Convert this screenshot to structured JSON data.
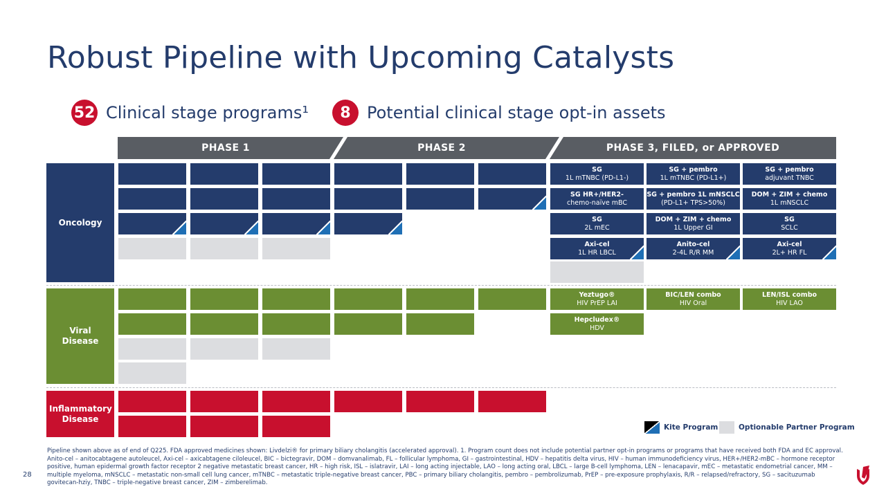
{
  "slide": {
    "title": "Robust Pipeline with Upcoming Catalysts",
    "page_number": "28"
  },
  "stats": [
    {
      "number": "52",
      "label": "Clinical stage programs¹"
    },
    {
      "number": "8",
      "label": "Potential clinical stage opt-in assets"
    }
  ],
  "phases": [
    "PHASE 1",
    "PHASE 2",
    "PHASE 3, FILED, or APPROVED"
  ],
  "categories": {
    "oncology": "Oncology",
    "viral": "Viral Disease",
    "inflammatory": "Inflammatory Disease"
  },
  "programs": {
    "sg_1l_mtnbc": {
      "name": "SG",
      "indication": "1L mTNBC (PD-L1-)"
    },
    "sg_pembro_1l_mtnbc": {
      "name": "SG + pembro",
      "indication": "1L mTNBC (PD-L1+)"
    },
    "sg_pembro_adj": {
      "name": "SG + pembro",
      "indication": "adjuvant TNBC"
    },
    "sg_hr": {
      "name": "SG HR+/HER2-",
      "indication": "chemo-naïve mBC"
    },
    "sg_pembro_nsclc": {
      "name": "SG + pembro 1L mNSCLC",
      "indication": "(PD-L1+ TPS>50%)"
    },
    "dom_zim_chemo_nsclc": {
      "name": "DOM + ZIM + chemo",
      "indication": "1L mNSCLC"
    },
    "sg_2l_mec": {
      "name": "SG",
      "indication": "2L mEC"
    },
    "dom_zim_chemo_gi": {
      "name": "DOM + ZIM + chemo",
      "indication": "1L Upper GI"
    },
    "sg_sclc": {
      "name": "SG",
      "indication": "SCLC"
    },
    "axicel_1l": {
      "name": "Axi-cel",
      "indication": "1L HR LBCL"
    },
    "anitocel": {
      "name": "Anito-cel",
      "indication": "2-4L R/R MM"
    },
    "axicel_2l": {
      "name": "Axi-cel",
      "indication": "2L+ HR FL"
    },
    "yeztugo": {
      "name": "Yeztugo®",
      "indication": "HIV PrEP LAI"
    },
    "bic_len": {
      "name": "BIC/LEN combo",
      "indication": "HIV Oral"
    },
    "len_isl": {
      "name": "LEN/ISL combo",
      "indication": "HIV LAO"
    },
    "hepcludex": {
      "name": "Hepcludex®",
      "indication": "HDV"
    }
  },
  "legend": {
    "kite": "Kite Program",
    "optionable": "Optionable Partner Program"
  },
  "footnote": "Pipeline shown above as of end of Q225. FDA approved medicines shown: Livdelzi® for primary biliary cholangitis (accelerated approval). 1. Program count does not include potential partner opt-in programs or programs that have received both FDA and EC approval. Anito-cel – anitocabtagene autoleucel, Axi-cel – axicabtagene ciloleucel, BIC – bictegravir, DOM – domvanalimab, FL – follicular lymphoma, GI – gastrointestinal, HDV – hepatitis delta virus, HIV – human immunodeficiency virus, HER+/HER2-mBC – hormone receptor positive, human epidermal growth factor receptor 2 negative metastatic breast cancer, HR – high risk, ISL – islatravir, LAI – long acting injectable, LAO – long acting oral, LBCL – large B-cell lymphoma, LEN – lenacapavir, mEC – metastatic endometrial cancer, MM – multiple myeloma, mNSCLC – metastatic non-small cell lung cancer, mTNBC – metastatic triple-negative breast cancer, PBC – primary biliary cholangitis, pembro – pembrolizumab, PrEP – pre-exposure prophylaxis, R/R – relapsed/refractory, SG – sacituzumab govitecan-hziy, TNBC – triple-negative breast cancer, ZIM – zimberelimab.",
  "colors": {
    "navy": "#243c6c",
    "green": "#6b8e33",
    "red": "#c8102e",
    "grey": "#dcdde0",
    "header": "#595d63",
    "kite_blue": "#1f6fb5"
  }
}
